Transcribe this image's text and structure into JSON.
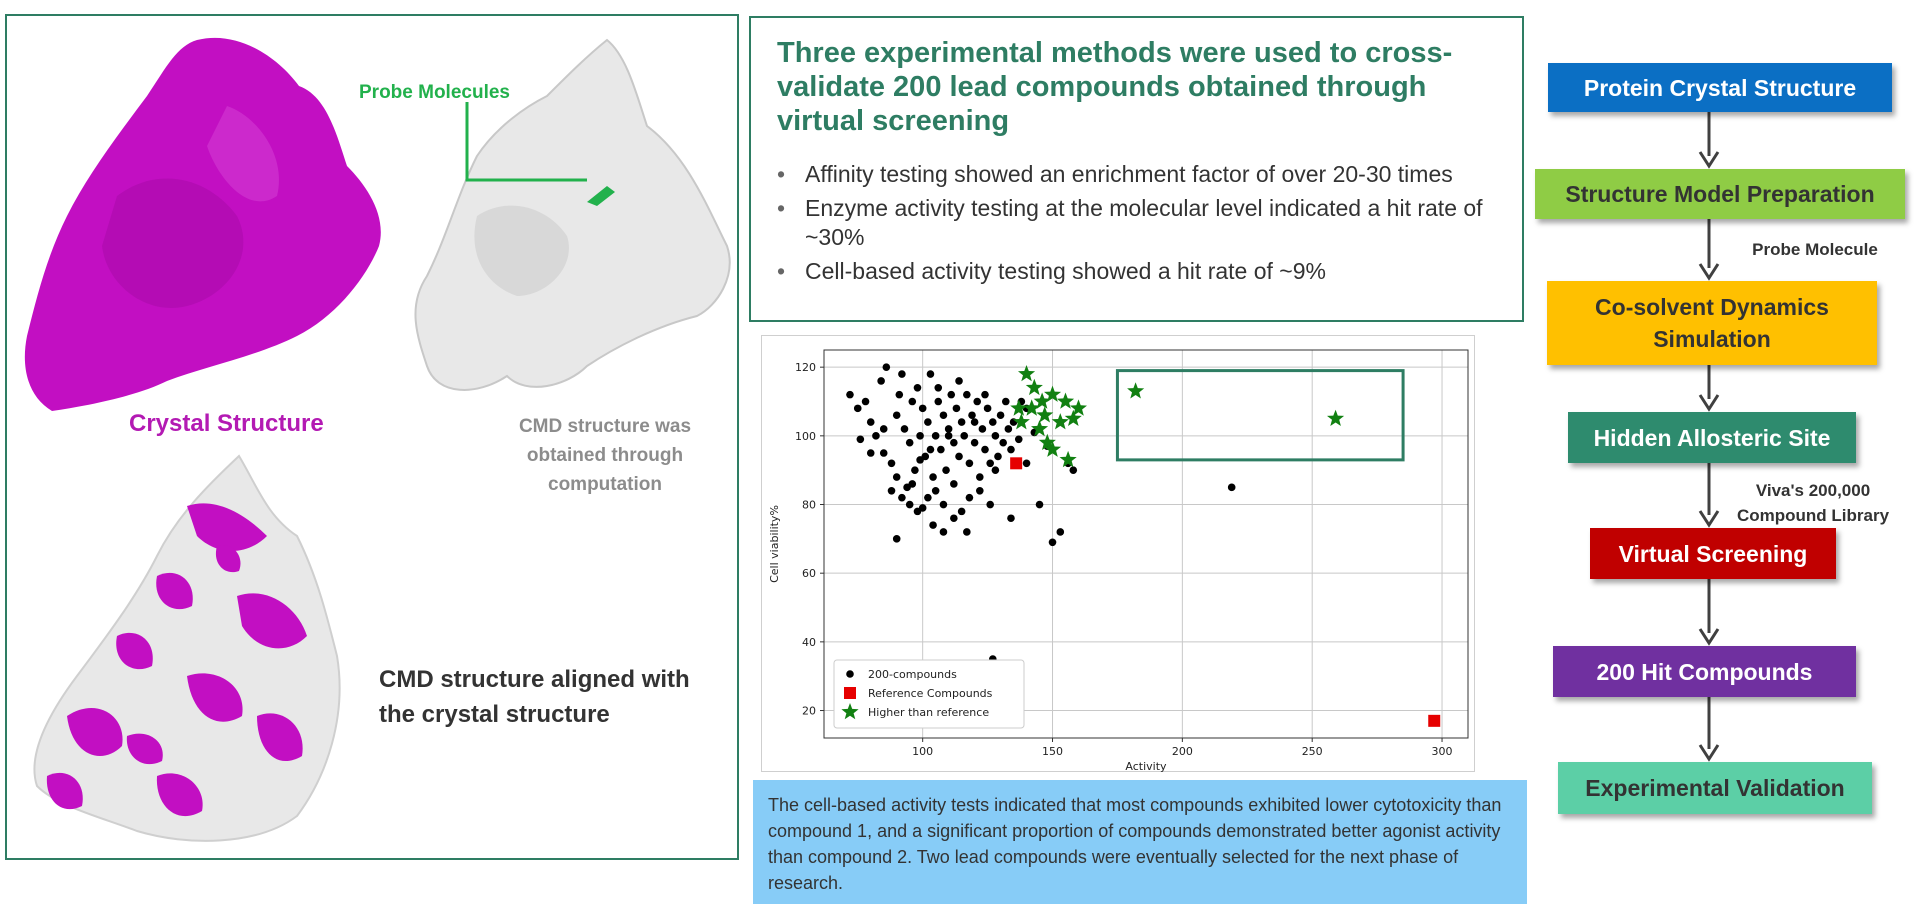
{
  "structures": {
    "crystal_label": "Crystal Structure",
    "probe_label": "Probe Molecules",
    "cmd_label": "CMD structure was obtained through computation",
    "aligned_label": "CMD structure aligned with the crystal structure",
    "colors": {
      "crystal": "#c20fc2",
      "cmd": "#e8e8e8",
      "frame": "#2e7d63",
      "probe": "#22b14c"
    }
  },
  "conclusion": {
    "title": "Three experimental methods were used to cross-validate 200 lead compounds obtained through virtual screening",
    "bullets": [
      "Affinity testing showed an enrichment factor of over 20-30 times",
      "Enzyme activity testing at the molecular level indicated a hit rate of ~30%",
      "Cell-based activity testing showed a hit rate of ~9%"
    ]
  },
  "chart_data": {
    "type": "scatter",
    "xlabel": "Activity",
    "ylabel": "Cell viability%",
    "xlim": [
      62,
      310
    ],
    "ylim": [
      12,
      125
    ],
    "xticks": [
      100,
      150,
      200,
      250,
      300
    ],
    "yticks": [
      20,
      40,
      60,
      80,
      100,
      120
    ],
    "grid": true,
    "legend_position": "lower-left",
    "series": [
      {
        "name": "200-compounds",
        "marker": "circle",
        "color": "#000000",
        "points": [
          [
            72,
            112
          ],
          [
            75,
            108
          ],
          [
            78,
            110
          ],
          [
            80,
            104
          ],
          [
            82,
            100
          ],
          [
            84,
            116
          ],
          [
            85,
            95
          ],
          [
            86,
            120
          ],
          [
            88,
            92
          ],
          [
            90,
            106
          ],
          [
            90,
            88
          ],
          [
            91,
            112
          ],
          [
            92,
            118
          ],
          [
            93,
            102
          ],
          [
            94,
            85
          ],
          [
            95,
            98
          ],
          [
            96,
            110
          ],
          [
            97,
            90
          ],
          [
            98,
            114
          ],
          [
            99,
            100
          ],
          [
            100,
            108
          ],
          [
            101,
            94
          ],
          [
            102,
            104
          ],
          [
            103,
            118
          ],
          [
            104,
            88
          ],
          [
            105,
            100
          ],
          [
            106,
            110
          ],
          [
            107,
            96
          ],
          [
            108,
            106
          ],
          [
            109,
            90
          ],
          [
            110,
            102
          ],
          [
            111,
            112
          ],
          [
            112,
            98
          ],
          [
            113,
            108
          ],
          [
            114,
            94
          ],
          [
            115,
            104
          ],
          [
            116,
            100
          ],
          [
            117,
            112
          ],
          [
            118,
            92
          ],
          [
            119,
            106
          ],
          [
            120,
            98
          ],
          [
            121,
            110
          ],
          [
            122,
            88
          ],
          [
            123,
            102
          ],
          [
            124,
            96
          ],
          [
            125,
            108
          ],
          [
            126,
            92
          ],
          [
            127,
            104
          ],
          [
            128,
            100
          ],
          [
            129,
            94
          ],
          [
            130,
            106
          ],
          [
            131,
            98
          ],
          [
            132,
            110
          ],
          [
            133,
            102
          ],
          [
            134,
            96
          ],
          [
            135,
            104
          ],
          [
            137,
            99
          ],
          [
            140,
            92
          ],
          [
            95,
            80
          ],
          [
            98,
            78
          ],
          [
            102,
            82
          ],
          [
            105,
            84
          ],
          [
            108,
            80
          ],
          [
            112,
            76
          ],
          [
            115,
            78
          ],
          [
            118,
            82
          ],
          [
            122,
            84
          ],
          [
            126,
            80
          ],
          [
            88,
            84
          ],
          [
            92,
            82
          ],
          [
            96,
            86
          ],
          [
            100,
            79
          ],
          [
            104,
            74
          ],
          [
            108,
            72
          ],
          [
            112,
            86
          ],
          [
            90,
            70
          ],
          [
            117,
            72
          ],
          [
            134,
            76
          ],
          [
            145,
            80
          ],
          [
            150,
            69
          ],
          [
            153,
            72
          ],
          [
            158,
            90
          ],
          [
            156,
            92
          ],
          [
            148,
            97
          ],
          [
            143,
            101
          ],
          [
            140,
            108
          ],
          [
            138,
            110
          ],
          [
            85,
            102
          ],
          [
            80,
            95
          ],
          [
            76,
            99
          ],
          [
            219,
            85
          ],
          [
            127,
            35
          ],
          [
            106,
            114
          ],
          [
            110,
            100
          ],
          [
            99,
            93
          ],
          [
            103,
            96
          ],
          [
            120,
            104
          ],
          [
            124,
            112
          ],
          [
            128,
            90
          ],
          [
            114,
            116
          ]
        ]
      },
      {
        "name": "Reference Compounds",
        "marker": "square",
        "color": "#e60000",
        "points": [
          [
            136,
            92
          ],
          [
            297,
            17
          ]
        ]
      },
      {
        "name": "Higher than reference",
        "marker": "star",
        "color": "#118011",
        "points": [
          [
            140,
            118
          ],
          [
            143,
            114
          ],
          [
            146,
            110
          ],
          [
            150,
            112
          ],
          [
            155,
            110
          ],
          [
            160,
            108
          ],
          [
            142,
            108
          ],
          [
            147,
            106
          ],
          [
            153,
            104
          ],
          [
            158,
            105
          ],
          [
            145,
            102
          ],
          [
            150,
            96
          ],
          [
            156,
            93
          ],
          [
            138,
            104
          ],
          [
            148,
            98
          ],
          [
            182,
            113
          ],
          [
            259,
            105
          ],
          [
            137,
            108
          ]
        ]
      }
    ],
    "highlight_box": {
      "x": [
        175,
        285
      ],
      "y": [
        93,
        119
      ],
      "color": "#2e7d63"
    }
  },
  "note": {
    "text": "The cell-based activity tests indicated that most compounds exhibited lower cytotoxicity than compound 1, and a significant proportion of compounds demonstrated better agonist activity than compound 2. Two lead compounds were eventually selected for the next phase of research."
  },
  "flow": {
    "steps": [
      {
        "label": "Protein Crystal Structure",
        "color": "#0b6fc4"
      },
      {
        "label": "Structure Model Preparation",
        "color": "#8fcc45"
      },
      {
        "label": "Co-solvent Dynamics Simulation",
        "color": "#ffc000"
      },
      {
        "label": "Hidden Allosteric Site",
        "color": "#2e8b6e"
      },
      {
        "label": "Virtual Screening",
        "color": "#c00000"
      },
      {
        "label": "200 Hit Compounds",
        "color": "#7030a0"
      },
      {
        "label": "Experimental Validation",
        "color": "#5ccfa6"
      }
    ],
    "side_labels": [
      "Probe Molecule",
      "Viva's 200,000 Compound Library"
    ]
  }
}
